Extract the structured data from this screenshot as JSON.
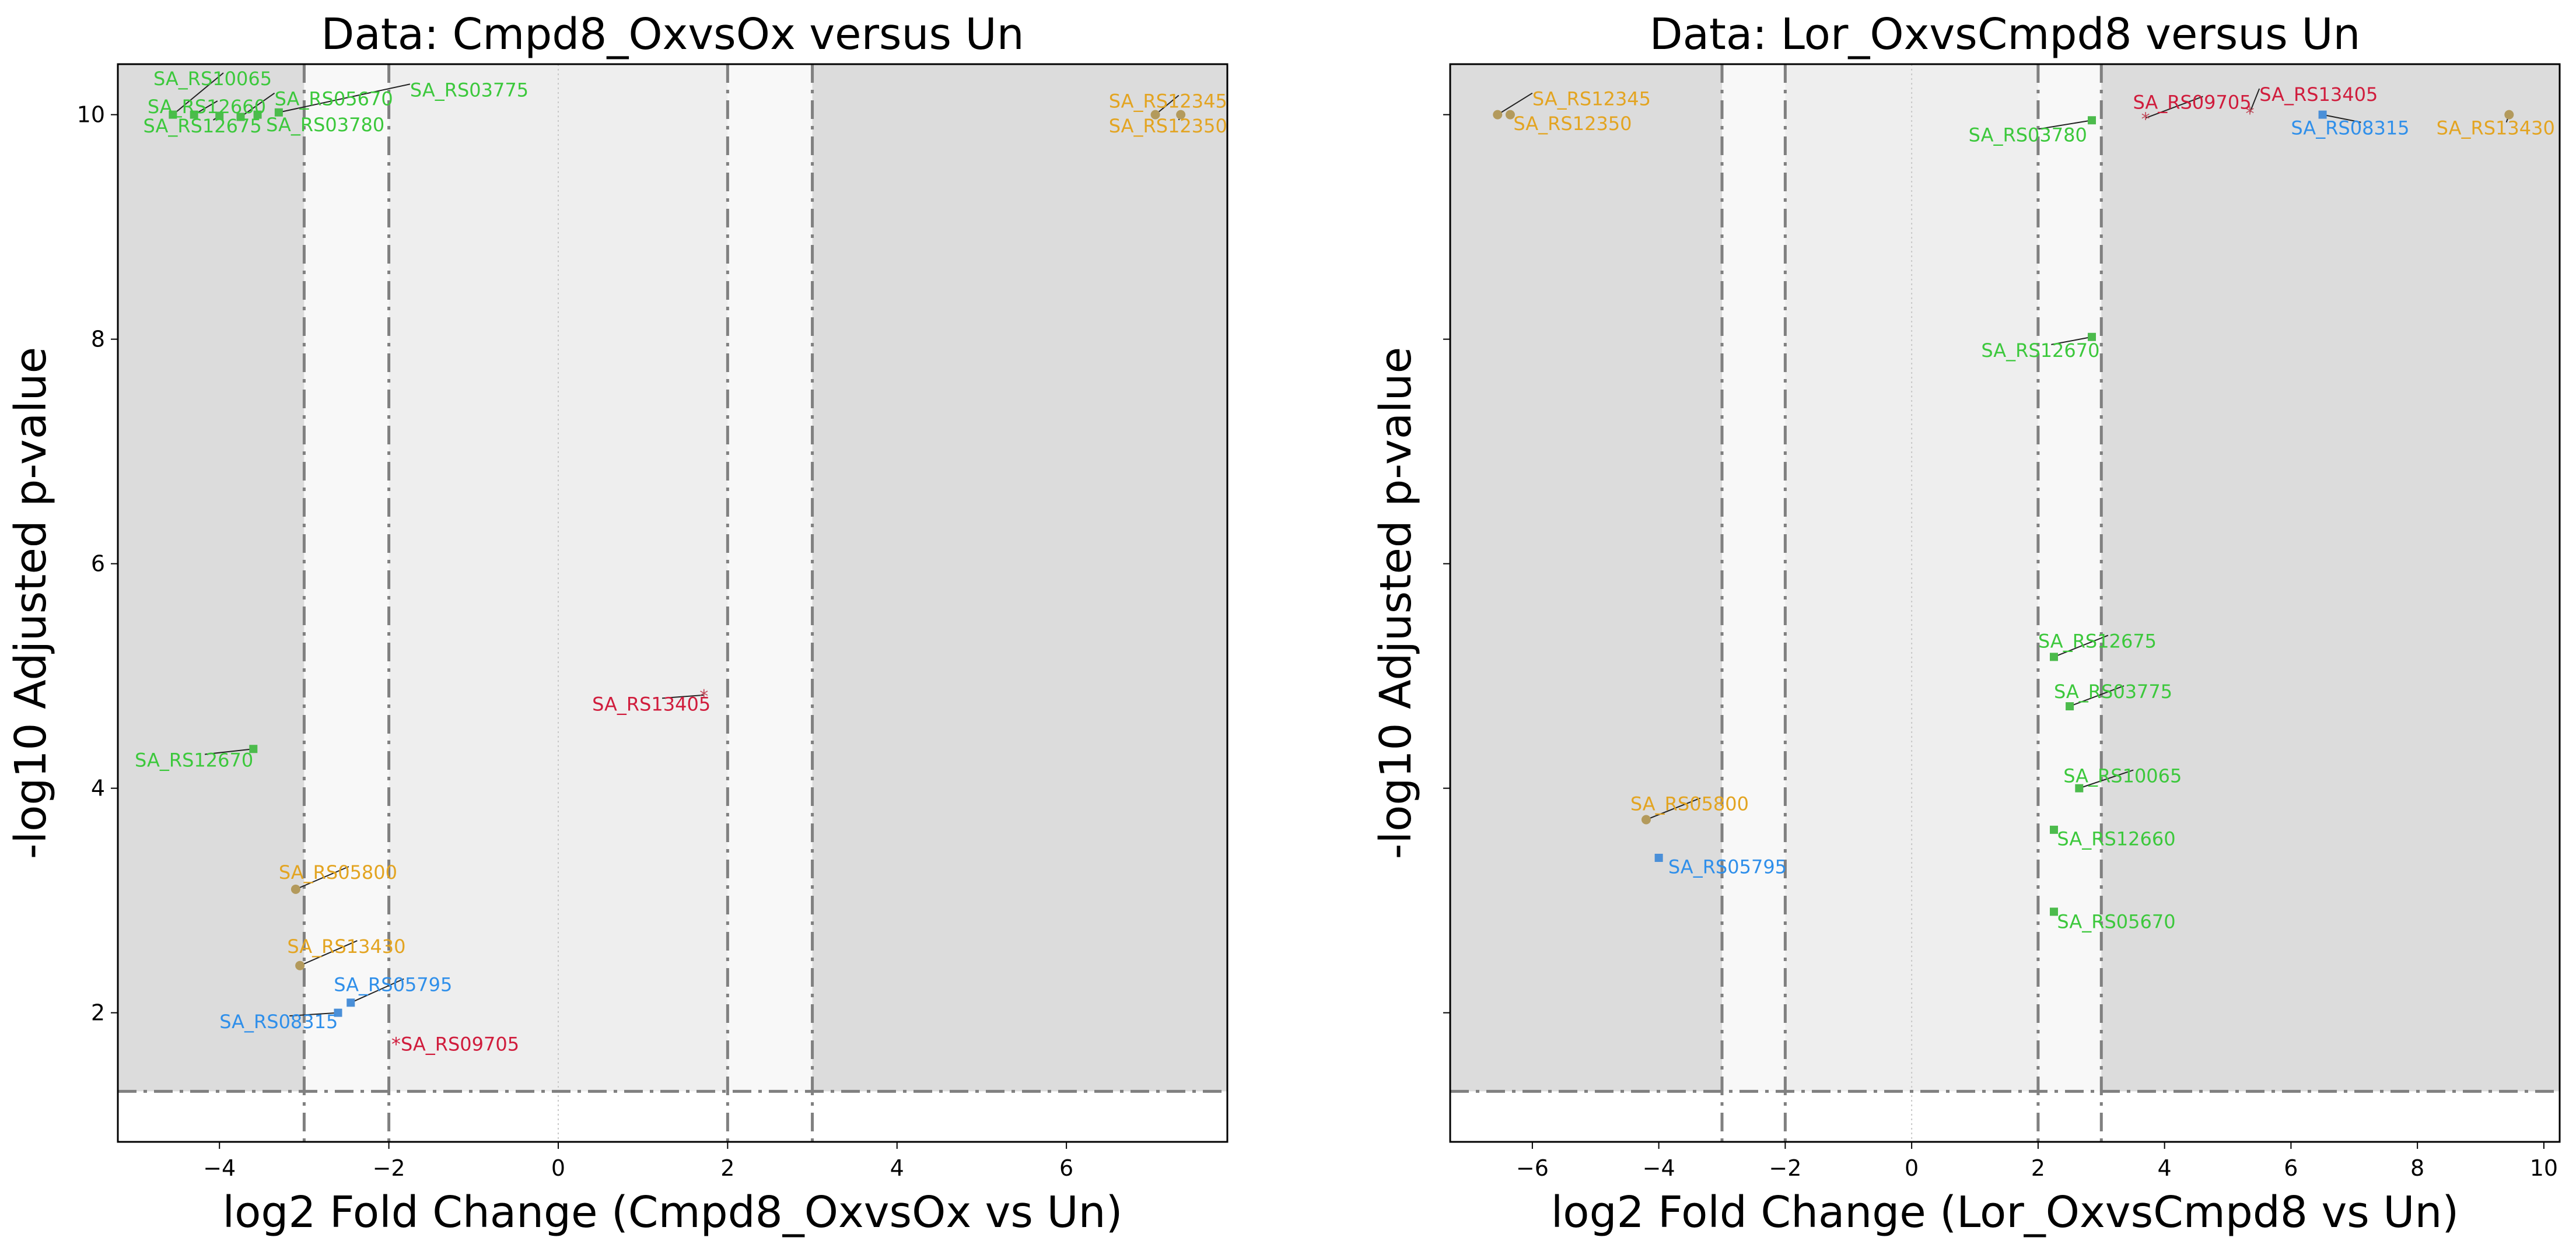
{
  "colors": {
    "region_outer": "#dcdcdc",
    "region_mid": "#eeeeee",
    "region_inner": "#f8f8f8",
    "threshold_line": "#808080",
    "zero_line": "#c8c8c8",
    "category_colors": {
      "green": "#3cc83c",
      "gold": "#e3a421",
      "blue": "#2f8fea",
      "red": "#d01c3c"
    },
    "marker_colors": {
      "green": "#4cbb4c",
      "gold": "#b39a5c",
      "blue": "#4a8fd8",
      "red": "#c24a5a"
    }
  },
  "chart_data": [
    {
      "type": "scatter",
      "title": "Data: Cmpd8_OxvsOx versus Un",
      "xlabel": "log2 Fold Change (Cmpd8_OxvsOx vs Un)",
      "ylabel": "-log10 Adjusted p-value",
      "xlim": [
        -5.2,
        7.9
      ],
      "ylim": [
        0.85,
        10.45
      ],
      "xticks": [
        -4,
        -2,
        0,
        2,
        4,
        6
      ],
      "yticks": [
        2,
        4,
        6,
        8,
        10
      ],
      "show_ytick_labels": true,
      "fold_change_thresholds": [
        -3,
        -2,
        2,
        3
      ],
      "pvalue_threshold": 1.3,
      "grid": false,
      "points": [
        {
          "label": "SA_RS10065",
          "x": -4.55,
          "y": 10.0,
          "color": "green",
          "lx": -4.78,
          "ly": 10.32,
          "anchor": "start"
        },
        {
          "label": "SA_RS12660",
          "x": -4.3,
          "y": 10.0,
          "color": "green",
          "lx": -4.85,
          "ly": 10.07,
          "anchor": "start"
        },
        {
          "label": "SA_RS12675",
          "x": -4.0,
          "y": 9.99,
          "color": "green",
          "lx": -4.9,
          "ly": 9.9,
          "anchor": "start"
        },
        {
          "label": "SA_RS05670",
          "x": -3.75,
          "y": 9.98,
          "color": "green",
          "lx": -3.35,
          "ly": 10.14,
          "anchor": "start"
        },
        {
          "label": "SA_RS03780",
          "x": -3.55,
          "y": 10.0,
          "color": "green",
          "lx": -3.45,
          "ly": 9.91,
          "anchor": "start"
        },
        {
          "label": "SA_RS03775",
          "x": -3.3,
          "y": 10.02,
          "color": "green",
          "lx": -1.75,
          "ly": 10.22,
          "anchor": "start"
        },
        {
          "label": "SA_RS12345",
          "x": 7.05,
          "y": 10.0,
          "color": "gold",
          "lx": 6.5,
          "ly": 10.12,
          "anchor": "start"
        },
        {
          "label": "SA_RS12350",
          "x": 7.35,
          "y": 10.0,
          "color": "gold",
          "lx": 6.5,
          "ly": 9.9,
          "anchor": "start"
        },
        {
          "label": "SA_RS12670",
          "x": -3.6,
          "y": 4.35,
          "color": "green",
          "lx": -5.0,
          "ly": 4.25,
          "anchor": "start"
        },
        {
          "label": "SA_RS13405",
          "x": 1.72,
          "y": 4.83,
          "color": "red",
          "marker": "star",
          "lx": 0.4,
          "ly": 4.75,
          "anchor": "start"
        },
        {
          "label": "SA_RS05800",
          "x": -3.1,
          "y": 3.1,
          "color": "gold",
          "lx": -3.3,
          "ly": 3.25,
          "anchor": "start"
        },
        {
          "label": "SA_RS13430",
          "x": -3.05,
          "y": 2.42,
          "color": "gold",
          "lx": -3.2,
          "ly": 2.59,
          "anchor": "start"
        },
        {
          "label": "SA_RS05795",
          "x": -2.45,
          "y": 2.09,
          "color": "blue",
          "lx": -2.65,
          "ly": 2.25,
          "anchor": "start"
        },
        {
          "label": "SA_RS08315",
          "x": -2.6,
          "y": 2.0,
          "color": "blue",
          "lx": -4.0,
          "ly": 1.92,
          "anchor": "start"
        },
        {
          "label": "*SA_RS09705",
          "x": -1.9,
          "y": 1.74,
          "color": "red",
          "marker": "none",
          "lx": -1.97,
          "ly": 1.72,
          "anchor": "start"
        }
      ]
    },
    {
      "type": "scatter",
      "title": "Data: Lor_OxvsCmpd8 versus Un",
      "xlabel": "log2 Fold Change (Lor_OxvsCmpd8 vs Un)",
      "ylabel": "-log10 Adjusted p-value",
      "xlim": [
        -7.3,
        10.25
      ],
      "ylim": [
        0.85,
        10.45
      ],
      "xticks": [
        -6,
        -4,
        -2,
        0,
        2,
        4,
        6,
        8,
        10
      ],
      "yticks": [
        2,
        4,
        6,
        8,
        10
      ],
      "show_ytick_labels": false,
      "fold_change_thresholds": [
        -3,
        -2,
        2,
        3
      ],
      "pvalue_threshold": 1.3,
      "grid": false,
      "points": [
        {
          "label": "SA_RS12345",
          "x": -6.55,
          "y": 10.0,
          "color": "gold",
          "lx": -6.0,
          "ly": 10.14,
          "anchor": "start"
        },
        {
          "label": "SA_RS12350",
          "x": -6.35,
          "y": 10.0,
          "color": "gold",
          "lx": -6.3,
          "ly": 9.92,
          "anchor": "start"
        },
        {
          "label": "SA_RS03780",
          "x": 2.85,
          "y": 9.95,
          "color": "green",
          "lx": 0.9,
          "ly": 9.82,
          "anchor": "start"
        },
        {
          "label": "SA_RS09705",
          "x": 3.7,
          "y": 9.97,
          "color": "red",
          "marker": "star",
          "lx": 3.5,
          "ly": 10.11,
          "anchor": "start"
        },
        {
          "label": "SA_RS13405",
          "x": 5.35,
          "y": 10.02,
          "color": "red",
          "marker": "star",
          "lx": 5.5,
          "ly": 10.18,
          "anchor": "start"
        },
        {
          "label": "SA_RS08315",
          "x": 6.5,
          "y": 10.0,
          "color": "blue",
          "lx": 6.0,
          "ly": 9.88,
          "anchor": "start"
        },
        {
          "label": "SA_RS13430",
          "x": 9.45,
          "y": 10.0,
          "color": "gold",
          "lx": 8.3,
          "ly": 9.88,
          "anchor": "start"
        },
        {
          "label": "SA_RS12670",
          "x": 2.85,
          "y": 8.02,
          "color": "green",
          "lx": 1.1,
          "ly": 7.9,
          "anchor": "start"
        },
        {
          "label": "SA_RS12675",
          "x": 2.25,
          "y": 5.17,
          "color": "green",
          "lx": 2.0,
          "ly": 5.31,
          "anchor": "start"
        },
        {
          "label": "SA_RS03775",
          "x": 2.5,
          "y": 4.73,
          "color": "green",
          "lx": 2.25,
          "ly": 4.86,
          "anchor": "start"
        },
        {
          "label": "SA_RS10065",
          "x": 2.65,
          "y": 4.0,
          "color": "green",
          "lx": 2.4,
          "ly": 4.11,
          "anchor": "start"
        },
        {
          "label": "SA_RS05800",
          "x": -4.2,
          "y": 3.72,
          "color": "gold",
          "lx": -4.45,
          "ly": 3.86,
          "anchor": "start"
        },
        {
          "label": "SA_RS12660",
          "x": 2.25,
          "y": 3.63,
          "color": "green",
          "lx": 2.3,
          "ly": 3.55,
          "anchor": "start"
        },
        {
          "label": "SA_RS05795",
          "x": -4.0,
          "y": 3.38,
          "color": "blue",
          "lx": -3.85,
          "ly": 3.3,
          "anchor": "start"
        },
        {
          "label": "SA_RS05670",
          "x": 2.25,
          "y": 2.9,
          "color": "green",
          "lx": 2.3,
          "ly": 2.81,
          "anchor": "start"
        }
      ]
    }
  ]
}
